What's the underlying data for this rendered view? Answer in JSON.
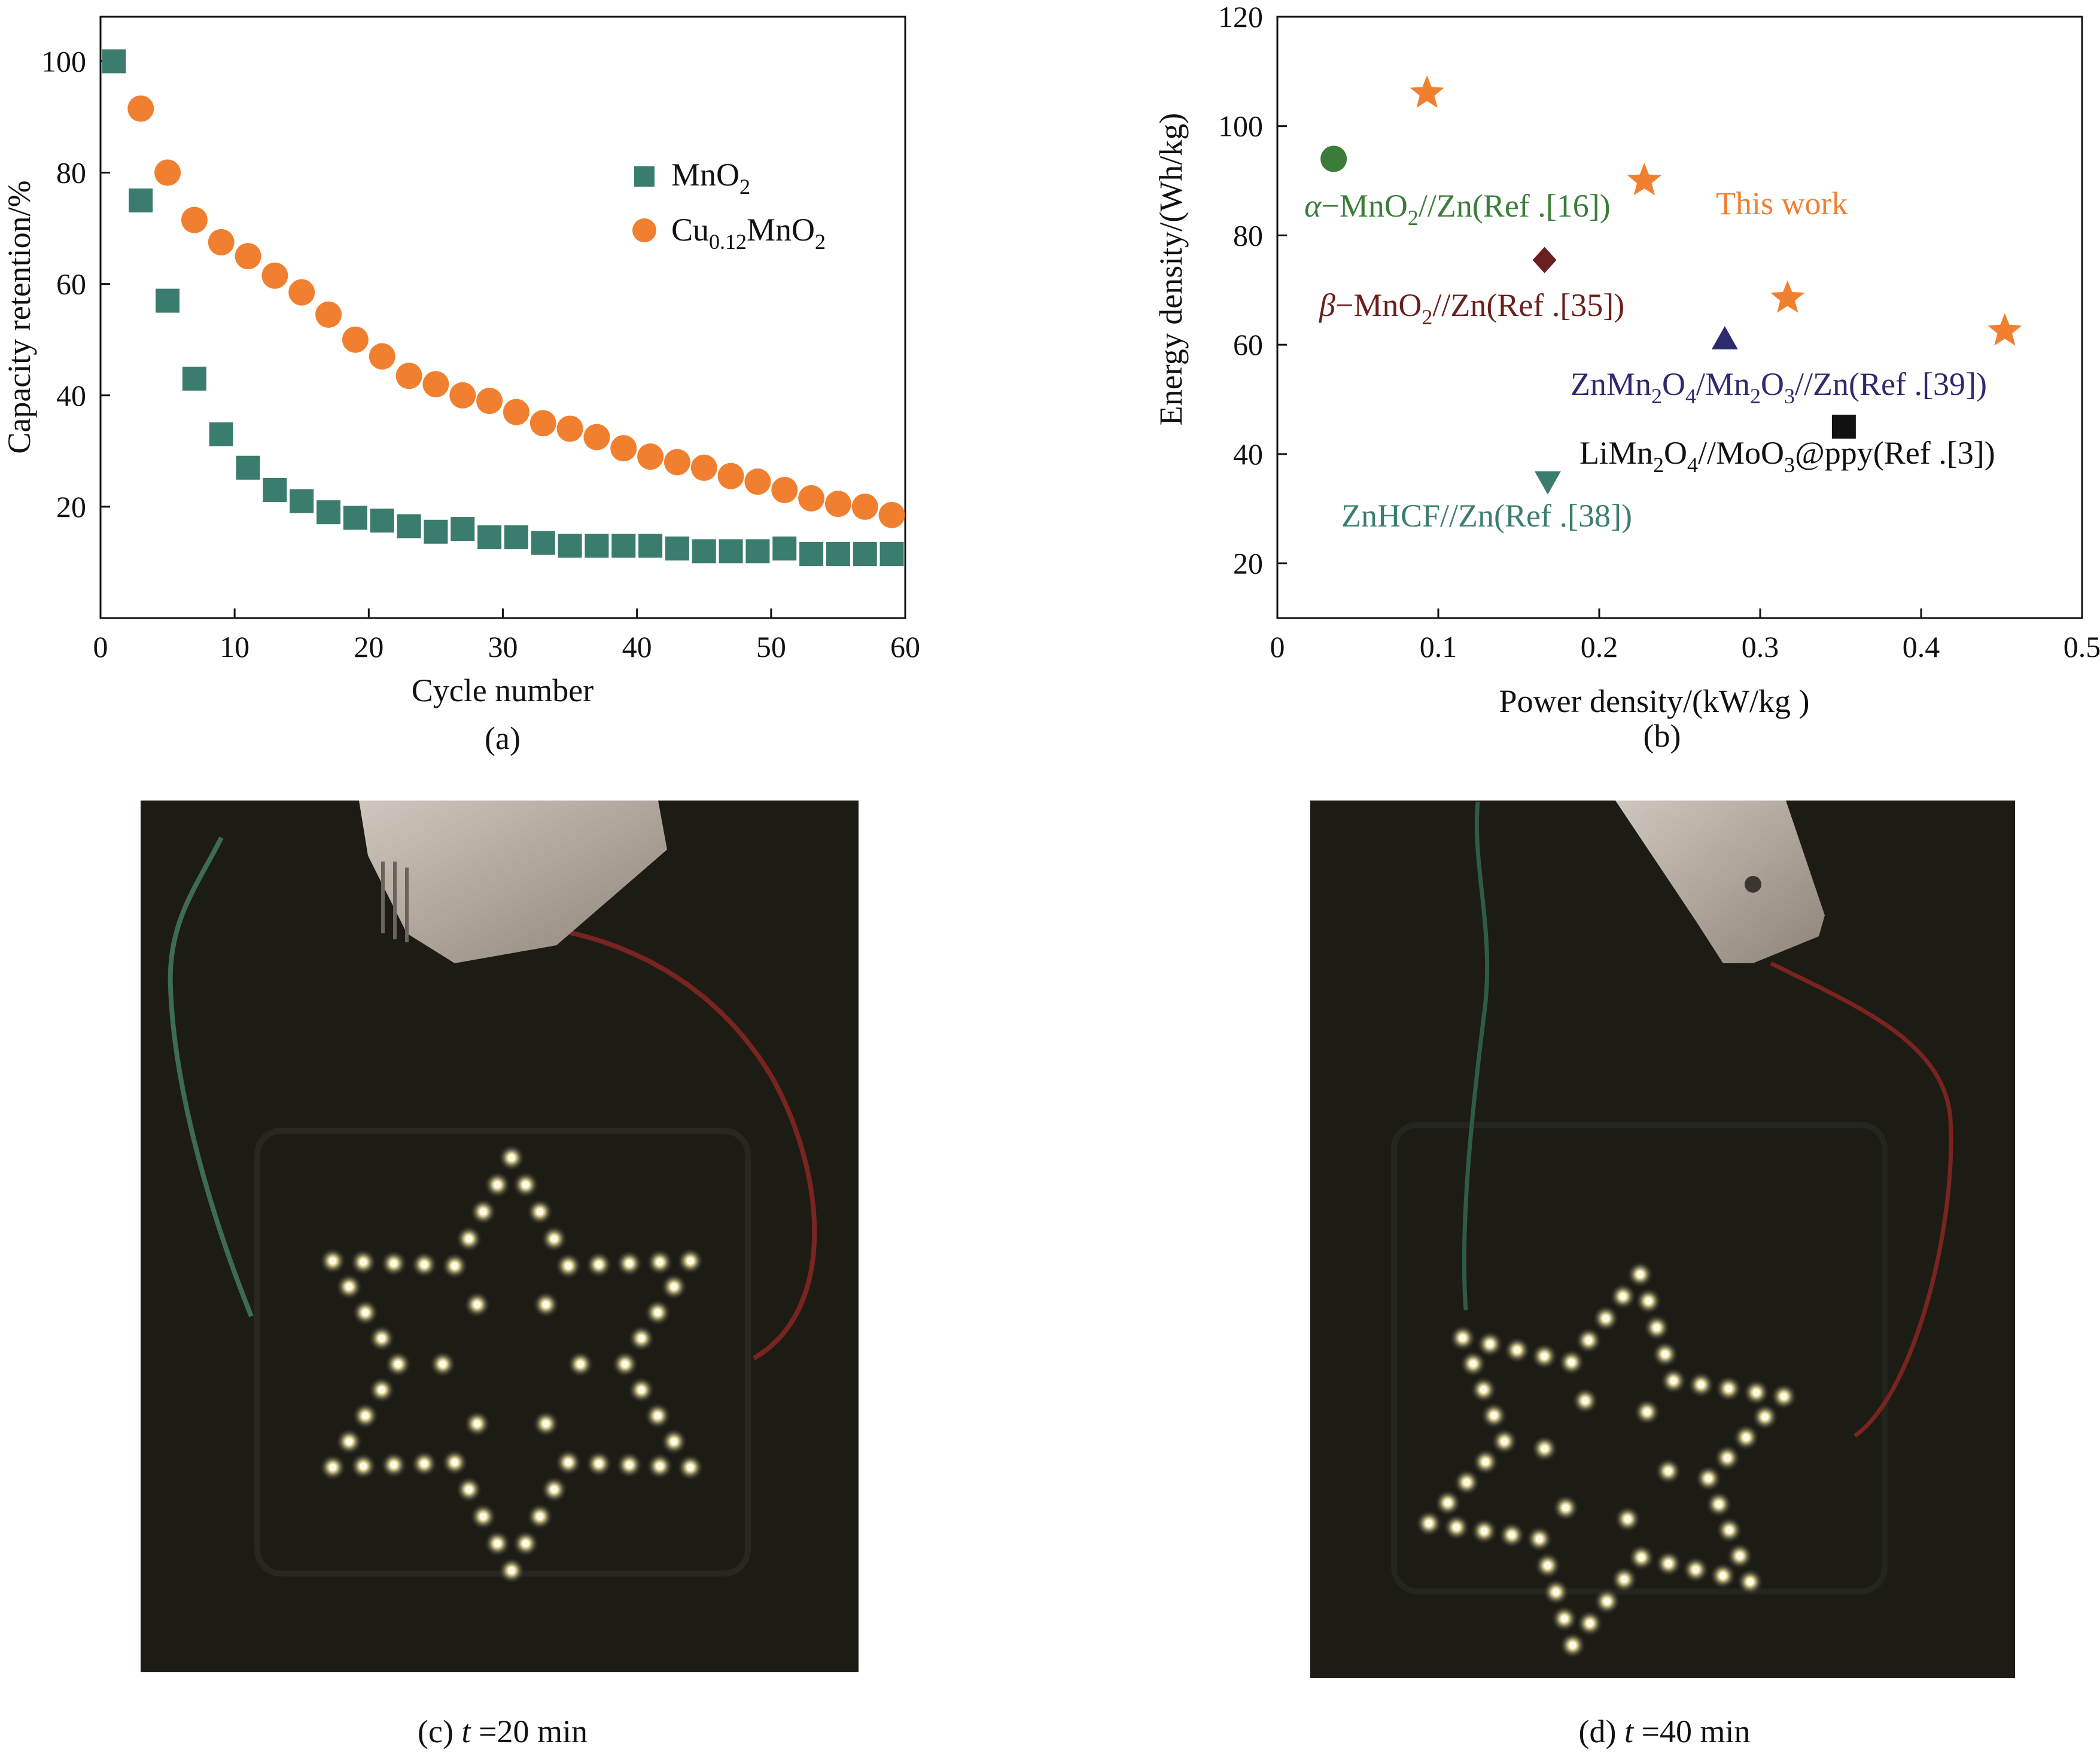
{
  "chart_data": [
    {
      "id": "a",
      "type": "scatter",
      "caption": "(a)",
      "xlabel": "Cycle number",
      "ylabel": "Capacity retention/%",
      "xlim": [
        0,
        60
      ],
      "ylim": [
        0,
        108
      ],
      "xticks": [
        0,
        10,
        20,
        30,
        40,
        50,
        60
      ],
      "yticks": [
        20,
        40,
        60,
        80,
        100
      ],
      "legend_position": "right",
      "series": [
        {
          "name": "MnO2",
          "legend_base": "MnO",
          "legend_sub": "2",
          "marker": "square",
          "color": "#3a7d6e",
          "x": [
            1,
            3,
            5,
            7,
            9,
            11,
            13,
            15,
            17,
            19,
            21,
            23,
            25,
            27,
            29,
            31,
            33,
            35,
            37,
            39,
            41,
            43,
            45,
            47,
            49,
            51,
            53,
            55,
            57,
            59
          ],
          "y": [
            100,
            75,
            57,
            43,
            33,
            27,
            23,
            21,
            19,
            18,
            17.5,
            16.5,
            15.5,
            16,
            14.5,
            14.5,
            13.5,
            13,
            13,
            13,
            13,
            12.5,
            12,
            12,
            12,
            12.5,
            11.5,
            11.5,
            11.5,
            11.5
          ]
        },
        {
          "name": "Cu0.12MnO2",
          "legend_base": "Cu",
          "legend_sub": "0.12",
          "legend_tail": "MnO",
          "legend_sub2": "2",
          "marker": "circle",
          "color": "#f08030",
          "x": [
            3,
            5,
            7,
            9,
            11,
            13,
            15,
            17,
            19,
            21,
            23,
            25,
            27,
            29,
            31,
            33,
            35,
            37,
            39,
            41,
            43,
            45,
            47,
            49,
            51,
            53,
            55,
            57,
            59
          ],
          "y": [
            91.5,
            80,
            71.5,
            67.5,
            65,
            61.5,
            58.5,
            54.5,
            50,
            47,
            43.5,
            42,
            40,
            39,
            37,
            35,
            34,
            32.5,
            30.5,
            29,
            28,
            27,
            25.5,
            24.5,
            23,
            21.5,
            20.5,
            20,
            18.5
          ]
        }
      ]
    },
    {
      "id": "b",
      "type": "scatter",
      "caption": "(b)",
      "xlabel": "Power density/(kW/kg )",
      "ylabel": "Energy density/(Wh/kg)",
      "xlim": [
        0,
        0.5
      ],
      "ylim": [
        10,
        120
      ],
      "xticks": [
        0,
        0.1,
        0.2,
        0.3,
        0.4,
        0.5
      ],
      "xtick_labels": [
        "0",
        "0.1",
        "0.2",
        "0.3",
        "0.4",
        "0.5"
      ],
      "yticks": [
        20,
        40,
        60,
        80,
        100,
        120
      ],
      "points": [
        {
          "label": "This work",
          "marker": "star",
          "color": "#f08030",
          "x": 0.093,
          "y": 106
        },
        {
          "label": "This work",
          "marker": "star",
          "color": "#f08030",
          "x": 0.228,
          "y": 90
        },
        {
          "label": "This work",
          "marker": "star",
          "color": "#f08030",
          "x": 0.317,
          "y": 68.5
        },
        {
          "label": "This work",
          "marker": "star",
          "color": "#f08030",
          "x": 0.452,
          "y": 62.5
        },
        {
          "label": "α−MnO2//Zn(Ref .[16])",
          "marker": "circle",
          "color": "#3a7d3a",
          "x": 0.035,
          "y": 94
        },
        {
          "label": "β−MnO2//Zn(Ref .[35])",
          "marker": "diamond",
          "color": "#6b1f1f",
          "x": 0.166,
          "y": 75.5
        },
        {
          "label": "ZnMn2O4/Mn2O3//Zn(Ref .[39])",
          "marker": "triangle-up",
          "color": "#2d2a6e",
          "x": 0.278,
          "y": 61
        },
        {
          "label": "LiMn2O4//MoO3@ppy(Ref .[3])",
          "marker": "square",
          "color": "#111111",
          "x": 0.352,
          "y": 45
        },
        {
          "label": "ZnHCF//Zn(Ref .[38])",
          "marker": "triangle-down",
          "color": "#3a7d6e",
          "x": 0.168,
          "y": 35
        }
      ],
      "annotations": {
        "this_work": {
          "text": "This work",
          "color": "#f08030"
        },
        "alpha": {
          "prefix": "α",
          "mid": "−MnO",
          "sub": "2",
          "tail": "//Zn(Ref .[16])",
          "color": "#3a7d3a"
        },
        "beta": {
          "prefix": "β",
          "mid": "−MnO",
          "sub": "2",
          "tail": "//Zn(Ref .[35])",
          "color": "#6b1f1f"
        },
        "znmn": {
          "a": "ZnMn",
          "s1": "2",
          "b": "O",
          "s2": "4",
          "c": "/Mn",
          "s3": "2",
          "d": "O",
          "s4": "3",
          "e": "//Zn(Ref .[39])",
          "color": "#2d2a6e"
        },
        "limn": {
          "a": "LiMn",
          "s1": "2",
          "b": "O",
          "s2": "4",
          "c": "//MoO",
          "s3": "3",
          "d": "@ppy(Ref .[3])",
          "color": "#111111"
        },
        "znhcf": {
          "text": "ZnHCF//Zn(Ref .[38])",
          "color": "#3a7d6e"
        }
      }
    }
  ],
  "photos": {
    "c": {
      "caption_prefix": "(c) ",
      "caption_var": "t",
      "caption_value": " =20 min"
    },
    "d": {
      "caption_prefix": "(d) ",
      "caption_var": "t",
      "caption_value": " =40 min"
    }
  }
}
